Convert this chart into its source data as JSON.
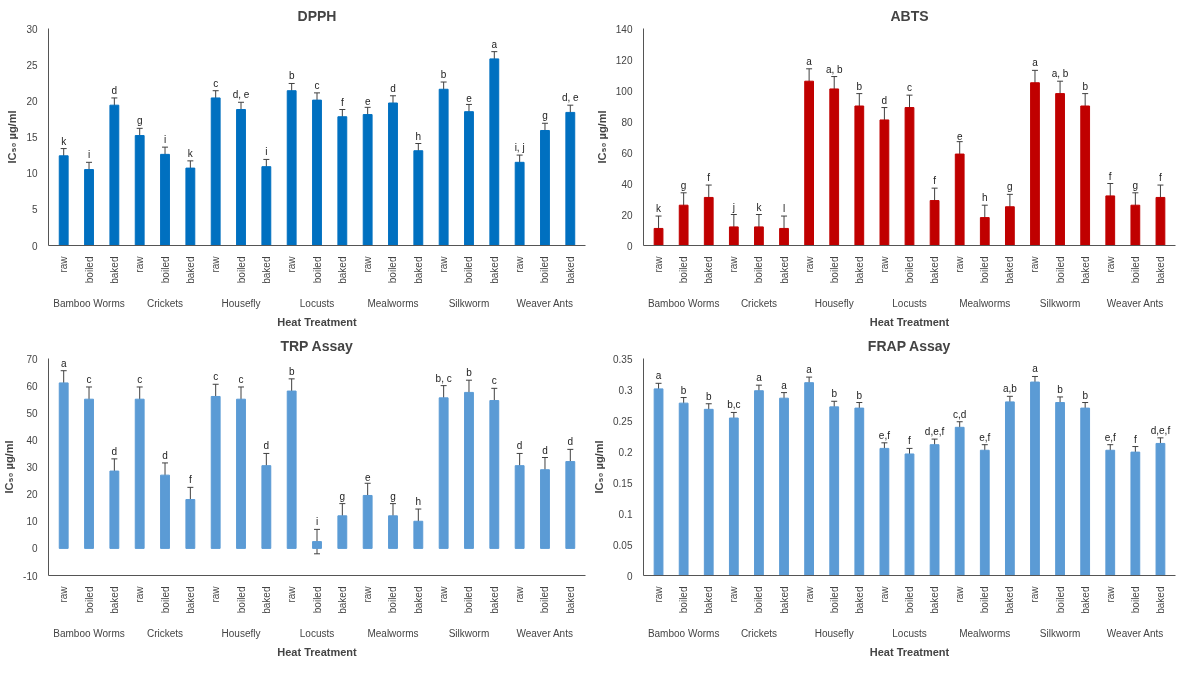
{
  "chart_data": [
    {
      "type": "bar",
      "title": "DPPH",
      "xlabel": "Heat Treatment",
      "ylabel": "IC₅₀ µg/ml",
      "color": "#0070c0",
      "grid": false,
      "categories": [
        "raw",
        "boiled",
        "baked",
        "raw",
        "boiled",
        "baked",
        "raw",
        "boiled",
        "baked",
        "raw",
        "boiled",
        "baked",
        "raw",
        "boiled",
        "baked",
        "raw",
        "boiled",
        "baked",
        "raw",
        "boiled",
        "baked"
      ],
      "annotations": [
        "Bamboo Worms",
        "Crickets",
        "Housefly",
        "Locusts",
        "Mealworms",
        "Silkworm",
        "Weaver Ants"
      ],
      "values": [
        12.4,
        10.5,
        19.4,
        15.2,
        12.6,
        10.7,
        20.4,
        18.8,
        10.9,
        21.4,
        20.1,
        17.8,
        18.1,
        19.7,
        13.1,
        21.6,
        18.5,
        25.8,
        11.5,
        15.9,
        18.4
      ],
      "errors": [
        1,
        1,
        1,
        1,
        1,
        1,
        1,
        1,
        1,
        1,
        1,
        1,
        1,
        1,
        1,
        1,
        1,
        1,
        1,
        1,
        1
      ],
      "value_labels": [
        "k",
        "i",
        "d",
        "g",
        "i",
        "k",
        "c",
        "d, e",
        "i",
        "b",
        "c",
        "f",
        "e",
        "d",
        "h",
        "b",
        "e",
        "a",
        "i, j",
        "g",
        "d, e"
      ],
      "ylim": [
        0,
        30
      ],
      "yticks": [
        0,
        5,
        10,
        15,
        20,
        25,
        30
      ]
    },
    {
      "type": "bar",
      "title": "ABTS",
      "xlabel": "Heat Treatment",
      "ylabel": "IC₅₀ µg/ml",
      "color": "#c00000",
      "grid": false,
      "categories": [
        "raw",
        "boiled",
        "baked",
        "raw",
        "boiled",
        "baked",
        "raw",
        "boiled",
        "baked",
        "raw",
        "boiled",
        "baked",
        "raw",
        "boiled",
        "baked",
        "raw",
        "boiled",
        "baked",
        "raw",
        "boiled",
        "baked"
      ],
      "annotations": [
        "Bamboo Worms",
        "Crickets",
        "Housefly",
        "Locusts",
        "Mealworms",
        "Silkworm",
        "Weaver Ants"
      ],
      "values": [
        11,
        26,
        31,
        12,
        12,
        11,
        106,
        101,
        90,
        81,
        89,
        29,
        59,
        18,
        25,
        105,
        98,
        90,
        32,
        26,
        31
      ],
      "errors": [
        8,
        8,
        8,
        8,
        8,
        8,
        8,
        8,
        8,
        8,
        8,
        8,
        8,
        8,
        8,
        8,
        8,
        8,
        8,
        8,
        8
      ],
      "value_labels": [
        "k",
        "g",
        "f",
        "j",
        "k",
        "l",
        "a",
        "a, b",
        "b",
        "d",
        "c",
        "f",
        "e",
        "h",
        "g",
        "a",
        "a, b",
        "b",
        "f",
        "g",
        "f"
      ],
      "ylim": [
        0,
        140
      ],
      "yticks": [
        0,
        20,
        40,
        60,
        80,
        100,
        120,
        140
      ]
    },
    {
      "type": "bar",
      "title": "TRP Assay",
      "xlabel": "Heat Treatment",
      "ylabel": "IC₅₀ µg/ml",
      "color": "#5b9bd5",
      "grid": false,
      "categories": [
        "raw",
        "boiled",
        "baked",
        "raw",
        "boiled",
        "baked",
        "raw",
        "boiled",
        "baked",
        "raw",
        "boiled",
        "baked",
        "raw",
        "boiled",
        "baked",
        "raw",
        "boiled",
        "baked",
        "raw",
        "boiled",
        "baked"
      ],
      "annotations": [
        "Bamboo Worms",
        "Crickets",
        "Housefly",
        "Locusts",
        "Mealworms",
        "Silkworm",
        "Weaver Ants"
      ],
      "values": [
        61,
        55,
        28.5,
        55,
        27,
        18,
        56,
        55,
        30.5,
        58,
        2.5,
        12,
        19.5,
        12,
        10,
        55.5,
        57.5,
        54.5,
        30.5,
        29,
        32
      ],
      "errors": [
        4.5,
        4.5,
        4.5,
        4.5,
        4.5,
        4.5,
        4.5,
        4.5,
        4.5,
        4.5,
        4.5,
        4.5,
        4.5,
        4.5,
        4.5,
        4.5,
        4.5,
        4.5,
        4.5,
        4.5,
        4.5
      ],
      "value_labels": [
        "a",
        "c",
        "d",
        "c",
        "d",
        "f",
        "c",
        "c",
        "d",
        "b",
        "i",
        "g",
        "e",
        "g",
        "h",
        "b, c",
        "b",
        "c",
        "d",
        "d",
        "d"
      ],
      "ylim": [
        -10,
        70
      ],
      "yticks": [
        -10,
        0,
        10,
        20,
        30,
        40,
        50,
        60,
        70
      ]
    },
    {
      "type": "bar",
      "title": "FRAP Assay",
      "xlabel": "Heat Treatment",
      "ylabel": "IC₅₀ µg/ml",
      "color": "#5b9bd5",
      "grid": false,
      "categories": [
        "raw",
        "boiled",
        "baked",
        "raw",
        "boiled",
        "baked",
        "raw",
        "boiled",
        "baked",
        "raw",
        "boiled",
        "baked",
        "raw",
        "boiled",
        "baked",
        "raw",
        "boiled",
        "baked",
        "raw",
        "boiled",
        "baked"
      ],
      "annotations": [
        "Bamboo Worms",
        "Crickets",
        "Housefly",
        "Locusts",
        "Mealworms",
        "Silkworm",
        "Weaver Ants"
      ],
      "values": [
        0.301,
        0.278,
        0.268,
        0.254,
        0.298,
        0.286,
        0.311,
        0.272,
        0.27,
        0.205,
        0.196,
        0.211,
        0.239,
        0.202,
        0.28,
        0.312,
        0.279,
        0.27,
        0.202,
        0.199,
        0.213
      ],
      "errors": [
        0.009,
        0.009,
        0.009,
        0.009,
        0.009,
        0.009,
        0.009,
        0.009,
        0.009,
        0.009,
        0.009,
        0.009,
        0.009,
        0.009,
        0.009,
        0.009,
        0.009,
        0.009,
        0.009,
        0.009,
        0.009
      ],
      "value_labels": [
        "a",
        "b",
        "b",
        "b,c",
        "a",
        "a",
        "a",
        "b",
        "b",
        "e,f",
        "f",
        "d,e,f",
        "c,d",
        "e,f",
        "a,b",
        "a",
        "b",
        "b",
        "e,f",
        "f",
        "d,e,f"
      ],
      "ylim": [
        0,
        0.35
      ],
      "yticks": [
        0,
        0.05,
        0.1,
        0.15,
        0.2,
        0.25,
        0.3,
        0.35
      ]
    }
  ]
}
